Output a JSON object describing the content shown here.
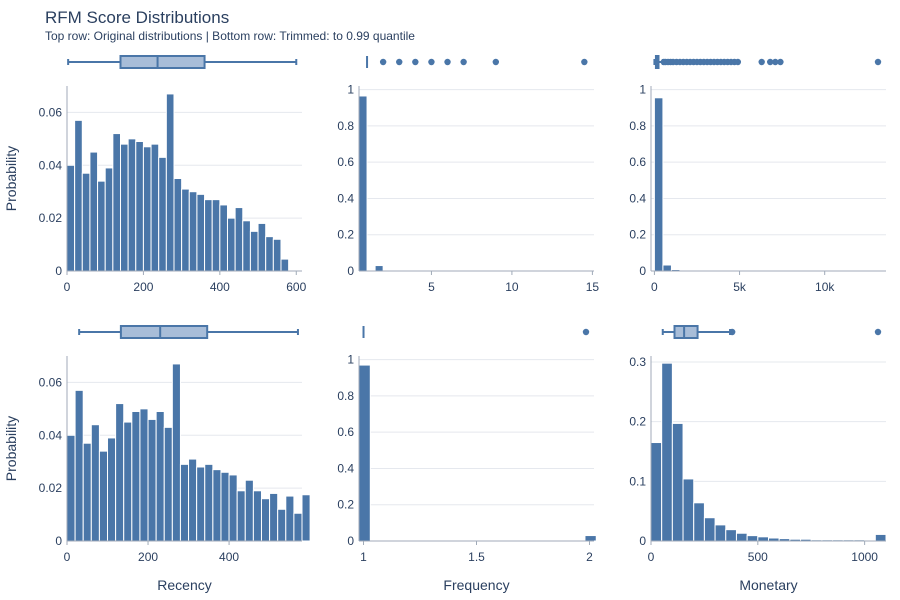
{
  "page": {
    "title": "RFM Score Distributions",
    "subtitle": "Top row: Original distributions | Bottom row: Trimmed: to 0.99 quantile"
  },
  "colors": {
    "bar": "#4a76a8",
    "bar_edge": "#ffffff",
    "box_fill": "#a8bdd8",
    "box_edge": "#4a76a8",
    "grid": "#e5e8ee",
    "axis": "#2a3f5f"
  },
  "chart_data": [
    {
      "id": "recency-original",
      "type": "bar",
      "histnorm": "probability",
      "row": "original",
      "xlabel": "",
      "ylabel": "Probability",
      "xlim": [
        0,
        615
      ],
      "ylim": [
        0,
        0.07
      ],
      "xticks": [
        {
          "v": 0,
          "t": "0"
        },
        {
          "v": 200,
          "t": "200"
        },
        {
          "v": 400,
          "t": "400"
        },
        {
          "v": 600,
          "t": "600"
        }
      ],
      "yticks": [
        {
          "v": 0,
          "t": "0"
        },
        {
          "v": 0.02,
          "t": "0.02"
        },
        {
          "v": 0.04,
          "t": "0.04"
        },
        {
          "v": 0.06,
          "t": "0.06"
        }
      ],
      "bin_start": 0,
      "bin_width": 20,
      "values": [
        0.04,
        0.057,
        0.037,
        0.045,
        0.034,
        0.039,
        0.052,
        0.048,
        0.05,
        0.049,
        0.047,
        0.048,
        0.043,
        0.067,
        0.035,
        0.031,
        0.03,
        0.029,
        0.027,
        0.027,
        0.025,
        0.02,
        0.024,
        0.019,
        0.015,
        0.018,
        0.013,
        0.012,
        0.0045
      ],
      "box": {
        "min": 3,
        "q1": 140,
        "median": 237,
        "q3": 360,
        "max": 600,
        "outliers": []
      }
    },
    {
      "id": "frequency-original",
      "type": "bar",
      "histnorm": "probability",
      "row": "original",
      "xlabel": "",
      "ylabel": "",
      "xlim": [
        0.5,
        15.1
      ],
      "ylim": [
        0,
        1.02
      ],
      "xticks": [
        {
          "v": 5,
          "t": "5"
        },
        {
          "v": 10,
          "t": "10"
        },
        {
          "v": 15,
          "t": "15"
        }
      ],
      "yticks": [
        {
          "v": 0,
          "t": "0"
        },
        {
          "v": 0.2,
          "t": "0.2"
        },
        {
          "v": 0.4,
          "t": "0.4"
        },
        {
          "v": 0.6,
          "t": "0.6"
        },
        {
          "v": 0.8,
          "t": "0.8"
        },
        {
          "v": 1,
          "t": "1"
        }
      ],
      "bin_start": 0.5,
      "bin_width": 0.5,
      "values": [
        0.965,
        0,
        0.03,
        0,
        0.003,
        0,
        0.001,
        0,
        0.0005
      ],
      "box": {
        "min": 1,
        "q1": 1,
        "median": 1,
        "q3": 1,
        "max": 1,
        "outliers": [
          2,
          3,
          4,
          5,
          6,
          7,
          9,
          14.5
        ]
      }
    },
    {
      "id": "monetary-original",
      "type": "bar",
      "histnorm": "probability",
      "row": "original",
      "xlabel": "",
      "ylabel": "",
      "xlim": [
        -200,
        13600
      ],
      "ylim": [
        0,
        1.02
      ],
      "xticks": [
        {
          "v": 0,
          "t": "0"
        },
        {
          "v": 5000,
          "t": "5k"
        },
        {
          "v": 10000,
          "t": "10k"
        }
      ],
      "yticks": [
        {
          "v": 0,
          "t": "0"
        },
        {
          "v": 0.2,
          "t": "0.2"
        },
        {
          "v": 0.4,
          "t": "0.4"
        },
        {
          "v": 0.6,
          "t": "0.6"
        },
        {
          "v": 0.8,
          "t": "0.8"
        },
        {
          "v": 1,
          "t": "1"
        }
      ],
      "bin_start": 0,
      "bin_width": 500,
      "values": [
        0.955,
        0.033,
        0.008,
        0.002,
        0.001
      ],
      "box": {
        "min": 0,
        "q1": 90,
        "median": 150,
        "q3": 240,
        "max": 500,
        "outliers": [
          550,
          650,
          800,
          950,
          1100,
          1300,
          1500,
          1700,
          1900,
          2100,
          2300,
          2500,
          2700,
          2900,
          3100,
          3300,
          3500,
          3700,
          3900,
          4100,
          4300,
          4500,
          4700,
          4900,
          6300,
          6800,
          7100,
          7400,
          13300
        ]
      }
    },
    {
      "id": "recency-trimmed",
      "type": "bar",
      "histnorm": "probability",
      "row": "trimmed",
      "xlabel": "Recency",
      "ylabel": "Probability",
      "xlim": [
        0,
        580
      ],
      "ylim": [
        0,
        0.07
      ],
      "xticks": [
        {
          "v": 0,
          "t": "0"
        },
        {
          "v": 200,
          "t": "200"
        },
        {
          "v": 400,
          "t": "400"
        }
      ],
      "yticks": [
        {
          "v": 0,
          "t": "0"
        },
        {
          "v": 0.02,
          "t": "0.02"
        },
        {
          "v": 0.04,
          "t": "0.04"
        },
        {
          "v": 0.06,
          "t": "0.06"
        }
      ],
      "bin_start": 0,
      "bin_width": 20,
      "values": [
        0.04,
        0.057,
        0.037,
        0.044,
        0.034,
        0.039,
        0.052,
        0.045,
        0.049,
        0.05,
        0.046,
        0.049,
        0.043,
        0.067,
        0.029,
        0.031,
        0.028,
        0.029,
        0.027,
        0.026,
        0.025,
        0.019,
        0.023,
        0.019,
        0.016,
        0.018,
        0.012,
        0.017,
        0.0105,
        0.0175
      ],
      "box": {
        "min": 30,
        "q1": 133,
        "median": 230,
        "q3": 346,
        "max": 570,
        "outliers": []
      }
    },
    {
      "id": "frequency-trimmed",
      "type": "bar",
      "histnorm": "probability",
      "row": "trimmed",
      "xlabel": "Frequency",
      "ylabel": "",
      "xlim": [
        0.98,
        2.02
      ],
      "ylim": [
        0,
        1.02
      ],
      "xticks": [
        {
          "v": 1,
          "t": "1"
        },
        {
          "v": 1.5,
          "t": "1.5"
        },
        {
          "v": 2,
          "t": "2"
        }
      ],
      "yticks": [
        {
          "v": 0,
          "t": "0"
        },
        {
          "v": 0.2,
          "t": "0.2"
        },
        {
          "v": 0.4,
          "t": "0.4"
        },
        {
          "v": 0.6,
          "t": "0.6"
        },
        {
          "v": 0.8,
          "t": "0.8"
        },
        {
          "v": 1,
          "t": "1"
        }
      ],
      "bin_start": 0.98,
      "bin_width": 0.05,
      "values": [
        0.97,
        0,
        0,
        0,
        0,
        0,
        0,
        0,
        0,
        0,
        0,
        0,
        0,
        0,
        0,
        0,
        0,
        0,
        0,
        0,
        0.03
      ],
      "box": {
        "min": 1,
        "q1": 1,
        "median": 1,
        "q3": 1,
        "max": 1,
        "outliers": [
          2
        ]
      }
    },
    {
      "id": "monetary-trimmed",
      "type": "bar",
      "histnorm": "probability",
      "row": "trimmed",
      "xlabel": "Monetary",
      "ylabel": "",
      "xlim": [
        0,
        1100
      ],
      "ylim": [
        0,
        0.31
      ],
      "xticks": [
        {
          "v": 0,
          "t": "0"
        },
        {
          "v": 500,
          "t": "500"
        },
        {
          "v": 1000,
          "t": "1000"
        }
      ],
      "yticks": [
        {
          "v": 0,
          "t": "0"
        },
        {
          "v": 0.1,
          "t": "0.1"
        },
        {
          "v": 0.2,
          "t": "0.2"
        },
        {
          "v": 0.3,
          "t": "0.3"
        }
      ],
      "bin_start": 0,
      "bin_width": 50,
      "values": [
        0.165,
        0.298,
        0.197,
        0.104,
        0.064,
        0.039,
        0.027,
        0.019,
        0.013,
        0.009,
        0.007,
        0.005,
        0.004,
        0.003,
        0.003,
        0.002,
        0.002,
        0.002,
        0.002,
        0.002,
        0.0015,
        0.011
      ],
      "box": {
        "min": 55,
        "q1": 110,
        "median": 155,
        "q3": 218,
        "max": 370,
        "outliers": [
          380,
          1080
        ]
      }
    }
  ]
}
